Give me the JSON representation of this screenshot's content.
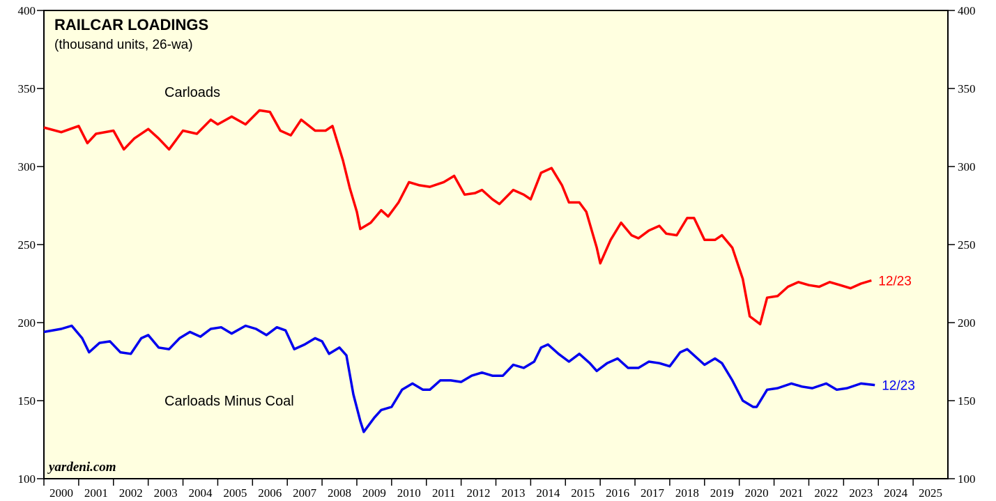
{
  "chart_data": {
    "type": "line",
    "title": "RAILCAR LOADINGS",
    "subtitle": "(thousand units, 26-wa)",
    "source": "yardeni.com",
    "background": "#ffffe0",
    "xlim": [
      2000,
      2026
    ],
    "xticks": [
      2000,
      2001,
      2002,
      2003,
      2004,
      2005,
      2006,
      2007,
      2008,
      2009,
      2010,
      2011,
      2012,
      2013,
      2014,
      2015,
      2016,
      2017,
      2018,
      2019,
      2020,
      2021,
      2022,
      2023,
      2024,
      2025
    ],
    "ylim": [
      100,
      400
    ],
    "yticks": [
      100,
      150,
      200,
      250,
      300,
      350,
      400
    ],
    "series": [
      {
        "name": "Carloads",
        "color": "#ff0000",
        "end_label": "12/23",
        "x": [
          2000.0,
          2000.5,
          2001.0,
          2001.25,
          2001.5,
          2002.0,
          2002.3,
          2002.6,
          2003.0,
          2003.3,
          2003.6,
          2004.0,
          2004.4,
          2004.8,
          2005.0,
          2005.4,
          2005.8,
          2006.2,
          2006.5,
          2006.8,
          2007.1,
          2007.4,
          2007.8,
          2008.1,
          2008.3,
          2008.6,
          2008.8,
          2009.0,
          2009.1,
          2009.4,
          2009.7,
          2009.9,
          2010.2,
          2010.5,
          2010.8,
          2011.1,
          2011.5,
          2011.8,
          2012.1,
          2012.4,
          2012.6,
          2012.9,
          2013.1,
          2013.5,
          2013.8,
          2014.0,
          2014.3,
          2014.6,
          2014.9,
          2015.1,
          2015.4,
          2015.6,
          2015.9,
          2016.0,
          2016.3,
          2016.6,
          2016.9,
          2017.1,
          2017.4,
          2017.7,
          2017.9,
          2018.2,
          2018.5,
          2018.7,
          2019.0,
          2019.3,
          2019.5,
          2019.8,
          2020.1,
          2020.3,
          2020.6,
          2020.8,
          2021.1,
          2021.4,
          2021.7,
          2022.0,
          2022.3,
          2022.6,
          2022.9,
          2023.2,
          2023.5,
          2023.8
        ],
        "values": [
          325,
          322,
          326,
          315,
          321,
          323,
          311,
          318,
          324,
          318,
          311,
          323,
          321,
          330,
          327,
          332,
          327,
          336,
          335,
          323,
          320,
          330,
          323,
          323,
          326,
          304,
          286,
          271,
          260,
          264,
          272,
          268,
          277,
          290,
          288,
          287,
          290,
          294,
          282,
          283,
          285,
          279,
          276,
          285,
          282,
          279,
          296,
          299,
          288,
          277,
          277,
          271,
          248,
          238,
          253,
          264,
          256,
          254,
          259,
          262,
          257,
          256,
          267,
          267,
          253,
          253,
          256,
          248,
          228,
          204,
          199,
          216,
          217,
          223,
          226,
          224,
          223,
          226,
          224,
          222,
          225,
          227
        ]
      },
      {
        "name": "Carloads Minus Coal",
        "color": "#0000ee",
        "end_label": "12/23",
        "x": [
          2000.0,
          2000.5,
          2000.8,
          2001.1,
          2001.3,
          2001.6,
          2001.9,
          2002.2,
          2002.5,
          2002.8,
          2003.0,
          2003.3,
          2003.6,
          2003.9,
          2004.2,
          2004.5,
          2004.8,
          2005.1,
          2005.4,
          2005.8,
          2006.1,
          2006.4,
          2006.7,
          2006.95,
          2007.2,
          2007.5,
          2007.8,
          2008.0,
          2008.2,
          2008.5,
          2008.7,
          2008.9,
          2009.1,
          2009.2,
          2009.5,
          2009.7,
          2010.0,
          2010.3,
          2010.6,
          2010.9,
          2011.1,
          2011.4,
          2011.7,
          2012.0,
          2012.3,
          2012.6,
          2012.9,
          2013.2,
          2013.5,
          2013.8,
          2014.1,
          2014.3,
          2014.5,
          2014.8,
          2015.1,
          2015.4,
          2015.7,
          2015.9,
          2016.2,
          2016.5,
          2016.8,
          2017.1,
          2017.4,
          2017.7,
          2018.0,
          2018.3,
          2018.5,
          2018.8,
          2019.0,
          2019.3,
          2019.5,
          2019.8,
          2020.1,
          2020.4,
          2020.5,
          2020.8,
          2021.1,
          2021.5,
          2021.8,
          2022.1,
          2022.5,
          2022.8,
          2023.1,
          2023.5,
          2023.9
        ],
        "values": [
          194,
          196,
          198,
          190,
          181,
          187,
          188,
          181,
          180,
          190,
          192,
          184,
          183,
          190,
          194,
          191,
          196,
          197,
          193,
          198,
          196,
          192,
          197,
          195,
          183,
          186,
          190,
          188,
          180,
          184,
          179,
          154,
          137,
          130,
          139,
          144,
          146,
          157,
          161,
          157,
          157,
          163,
          163,
          162,
          166,
          168,
          166,
          166,
          173,
          171,
          175,
          184,
          186,
          180,
          175,
          180,
          174,
          169,
          174,
          177,
          171,
          171,
          175,
          174,
          172,
          181,
          183,
          177,
          173,
          177,
          174,
          163,
          150,
          146,
          146,
          157,
          158,
          161,
          159,
          158,
          161,
          157,
          158,
          161,
          160
        ]
      }
    ]
  }
}
